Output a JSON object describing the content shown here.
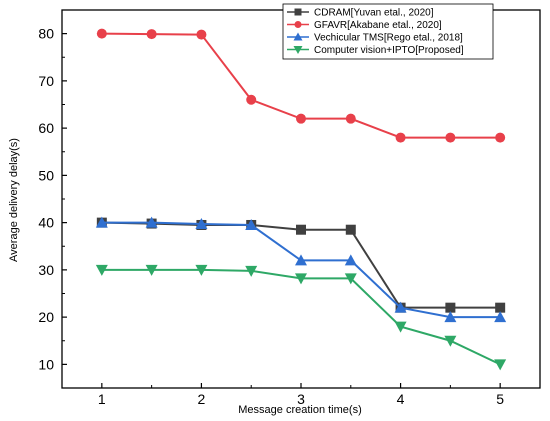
{
  "chart_data": {
    "type": "line",
    "xlabel": "Message creation time(s)",
    "ylabel": "Average delivery delay(s)",
    "xlim": [
      0.6,
      5.4
    ],
    "ylim": [
      5,
      85
    ],
    "x_ticks": [
      "1",
      "2",
      "3",
      "4",
      "5"
    ],
    "y_ticks": [
      "10",
      "20",
      "30",
      "40",
      "50",
      "60",
      "70",
      "80"
    ],
    "grid": false,
    "legend_position": "top-right",
    "x": [
      1,
      1.5,
      2,
      2.5,
      3,
      3.5,
      4,
      4.5,
      5
    ],
    "series": [
      {
        "name": "CDRAM[Yuvan etal., 2020]",
        "color": "#404040",
        "marker": "square",
        "values": [
          40,
          39.8,
          39.5,
          39.5,
          38.5,
          38.5,
          22,
          22,
          22
        ]
      },
      {
        "name": "GFAVR[Akabane etal., 2020]",
        "color": "#e8404a",
        "marker": "circle",
        "values": [
          80,
          79.9,
          79.8,
          66,
          62,
          62,
          58,
          58,
          58
        ]
      },
      {
        "name": "Vechicular TMS[Rego etal., 2018]",
        "color": "#2f6fd0",
        "marker": "triangle-up",
        "values": [
          40,
          40,
          39.7,
          39.5,
          32,
          32,
          22,
          20,
          20
        ]
      },
      {
        "name": "Computer vision+IPTO[Proposed]",
        "color": "#2ea866",
        "marker": "triangle-down",
        "values": [
          30,
          30,
          30,
          29.8,
          28.2,
          28.2,
          18,
          15,
          10
        ]
      }
    ]
  }
}
